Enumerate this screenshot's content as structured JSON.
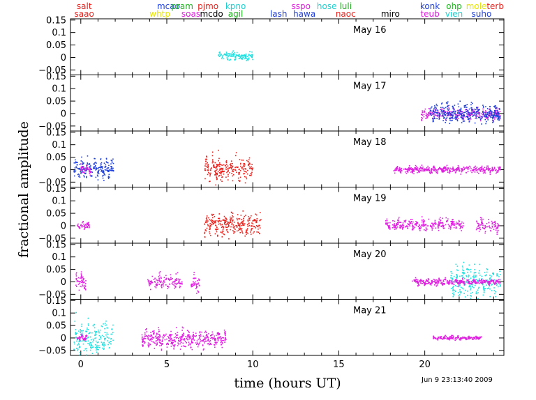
{
  "chart_data": {
    "type": "scatter",
    "xlabel": "time (hours UT)",
    "ylabel": "fractional amplitude",
    "xlim": [
      -0.6,
      24.6
    ],
    "ylim": [
      -0.07,
      0.155
    ],
    "x_ticks": [
      0,
      5,
      10,
      15,
      20
    ],
    "y_ticks": [
      -0.05,
      0,
      0.05,
      0.1,
      0.15
    ],
    "y_tick_labels": [
      "−0.05",
      "0",
      "0.05",
      "0.1",
      "0.15"
    ],
    "timestamp": "Jun  9 23:13:40 2009",
    "sites": [
      {
        "name": "salt",
        "hour": 0.2,
        "row": 0,
        "color": "#e8221d"
      },
      {
        "name": "saao",
        "hour": 0.2,
        "row": 1,
        "color": "#e8221d"
      },
      {
        "name": "mcao",
        "hour": 5.1,
        "row": 0,
        "color": "#1f3fd8"
      },
      {
        "name": "whtp",
        "hour": 4.6,
        "row": 1,
        "color": "#e6e600"
      },
      {
        "name": "pram",
        "hour": 5.9,
        "row": 0,
        "color": "#22b422"
      },
      {
        "name": "soas",
        "hour": 6.4,
        "row": 1,
        "color": "#e020e0"
      },
      {
        "name": "pjmo",
        "hour": 7.4,
        "row": 0,
        "color": "#e8221d"
      },
      {
        "name": "mcdo",
        "hour": 7.6,
        "row": 1,
        "color": "#000000"
      },
      {
        "name": "kpno",
        "hour": 9.0,
        "row": 0,
        "color": "#20d0d0"
      },
      {
        "name": "agil",
        "hour": 9.0,
        "row": 1,
        "color": "#22b422"
      },
      {
        "name": "lash",
        "hour": 11.5,
        "row": 1,
        "color": "#1f3fd8"
      },
      {
        "name": "sspo",
        "hour": 12.8,
        "row": 0,
        "color": "#e020e0"
      },
      {
        "name": "hawa",
        "hour": 13.0,
        "row": 1,
        "color": "#1f3fd8"
      },
      {
        "name": "hose",
        "hour": 14.3,
        "row": 0,
        "color": "#20d0d0"
      },
      {
        "name": "luli",
        "hour": 15.4,
        "row": 0,
        "color": "#22b422"
      },
      {
        "name": "naoc",
        "hour": 15.4,
        "row": 1,
        "color": "#e8221d"
      },
      {
        "name": "miro",
        "hour": 18.0,
        "row": 1,
        "color": "#000000"
      },
      {
        "name": "konk",
        "hour": 20.3,
        "row": 0,
        "color": "#1f3fd8"
      },
      {
        "name": "teub",
        "hour": 20.3,
        "row": 1,
        "color": "#e020e0"
      },
      {
        "name": "ohp",
        "hour": 21.7,
        "row": 0,
        "color": "#22b422"
      },
      {
        "name": "vien",
        "hour": 21.7,
        "row": 1,
        "color": "#20d0d0"
      },
      {
        "name": "mole",
        "hour": 23.0,
        "row": 0,
        "color": "#e6e600"
      },
      {
        "name": "suho",
        "hour": 23.3,
        "row": 1,
        "color": "#1f3fd8"
      },
      {
        "name": "terb",
        "hour": 24.1,
        "row": 0,
        "color": "#e8221d"
      }
    ],
    "panels": [
      {
        "label": "May 16",
        "segments": [
          {
            "start": 8.0,
            "end": 10.0,
            "color": "#20e0e0",
            "amp": 0.02,
            "center": 0.005
          }
        ]
      },
      {
        "label": "May 17",
        "segments": [
          {
            "start": 19.8,
            "end": 24.4,
            "color": "#e020e0",
            "amp": 0.025,
            "center": 0.0
          },
          {
            "start": 20.3,
            "end": 24.4,
            "color": "#1f3fd8",
            "amp": 0.04,
            "center": 0.0
          }
        ]
      },
      {
        "label": "May 18",
        "segments": [
          {
            "start": -0.4,
            "end": 1.9,
            "color": "#1f3fd8",
            "amp": 0.045,
            "center": 0.005
          },
          {
            "start": 0.0,
            "end": 0.6,
            "color": "#e020e0",
            "amp": 0.02,
            "center": 0.0
          },
          {
            "start": 7.2,
            "end": 10.0,
            "color": "#e8221d",
            "amp": 0.05,
            "center": 0.005
          },
          {
            "start": 18.2,
            "end": 24.4,
            "color": "#e020e0",
            "amp": 0.015,
            "center": 0.0
          }
        ]
      },
      {
        "label": "May 19",
        "segments": [
          {
            "start": -0.2,
            "end": 0.5,
            "color": "#e020e0",
            "amp": 0.02,
            "center": 0.0
          },
          {
            "start": 7.2,
            "end": 10.5,
            "color": "#e8221d",
            "amp": 0.05,
            "center": 0.005
          },
          {
            "start": 17.7,
            "end": 22.3,
            "color": "#e020e0",
            "amp": 0.025,
            "center": 0.005
          },
          {
            "start": 23.0,
            "end": 24.3,
            "color": "#e020e0",
            "amp": 0.03,
            "center": 0.0
          }
        ]
      },
      {
        "label": "May 20",
        "segments": [
          {
            "start": -0.3,
            "end": 0.3,
            "color": "#e020e0",
            "amp": 0.04,
            "center": 0.0
          },
          {
            "start": 3.9,
            "end": 5.9,
            "color": "#e020e0",
            "amp": 0.03,
            "center": 0.0
          },
          {
            "start": 6.4,
            "end": 6.9,
            "color": "#e020e0",
            "amp": 0.04,
            "center": 0.0
          },
          {
            "start": 19.2,
            "end": 21.5,
            "color": "#e020e0",
            "amp": 0.015,
            "center": 0.0
          },
          {
            "start": 21.5,
            "end": 24.4,
            "color": "#20e0e0",
            "amp": 0.07,
            "center": 0.0
          },
          {
            "start": 21.5,
            "end": 24.4,
            "color": "#e020e0",
            "amp": 0.012,
            "center": 0.0
          }
        ]
      },
      {
        "label": "May 21",
        "segments": [
          {
            "start": -0.4,
            "end": 1.9,
            "color": "#20e0e0",
            "amp": 0.07,
            "center": 0.0
          },
          {
            "start": -0.2,
            "end": 0.4,
            "color": "#e020e0",
            "amp": 0.015,
            "center": 0.0
          },
          {
            "start": 3.5,
            "end": 8.5,
            "color": "#e020e0",
            "amp": 0.04,
            "center": -0.005
          },
          {
            "start": 20.5,
            "end": 23.3,
            "color": "#e020e0",
            "amp": 0.008,
            "center": 0.0
          }
        ]
      }
    ]
  }
}
